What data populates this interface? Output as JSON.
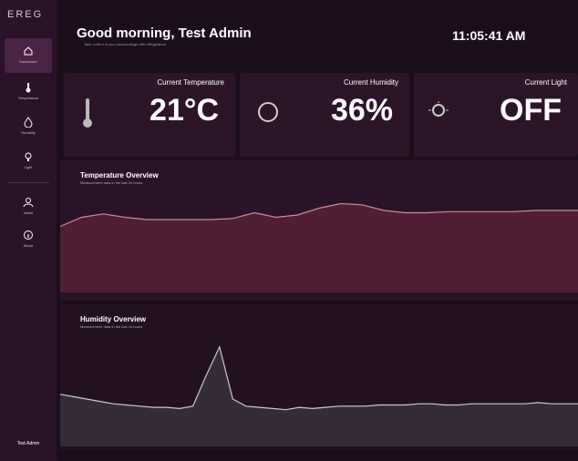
{
  "sidebar": {
    "logo": "EREG",
    "nav": [
      {
        "label": "Dashboard"
      },
      {
        "label": "Temperature"
      },
      {
        "label": "Humidity"
      },
      {
        "label": "Light"
      },
      {
        "label": "Users"
      },
      {
        "label": "About"
      }
    ],
    "user": "Test Admin"
  },
  "header": {
    "greeting": "Good morning, Test Admin",
    "subtitle": "Take control of your surroundings with eRegulators",
    "time": "11:05:41 AM"
  },
  "cards": [
    {
      "title": "Current Temperature",
      "value": "21°C"
    },
    {
      "title": "Current Humidity",
      "value": "36%"
    },
    {
      "title": "Current Light",
      "value": "OFF"
    }
  ],
  "charts": [
    {
      "type": "area",
      "title": "Temperature Overview",
      "subtitle": "Measurement data in the last 24 hours",
      "color": "#c98a9a",
      "fill": "#5a2238",
      "ylim": [
        0,
        100
      ],
      "values": [
        58,
        66,
        69,
        66,
        64,
        64,
        64,
        64,
        65,
        70,
        66,
        68,
        74,
        78,
        77,
        72,
        70,
        70,
        71,
        71,
        71,
        71,
        72,
        72,
        72
      ]
    },
    {
      "type": "area",
      "title": "Humidity Overview",
      "subtitle": "Measurement data in the last 24 hours",
      "color": "#cfc6d2",
      "fill": "#3b3240",
      "ylim": [
        0,
        100
      ],
      "values": [
        44,
        42,
        40,
        38,
        36,
        35,
        34,
        33,
        33,
        32,
        34,
        60,
        84,
        40,
        34,
        33,
        32,
        31,
        33,
        32,
        33,
        34,
        34,
        34,
        35,
        35,
        35,
        36,
        36,
        35,
        35,
        36,
        36,
        36,
        36,
        36,
        37,
        36,
        36,
        36
      ]
    }
  ]
}
